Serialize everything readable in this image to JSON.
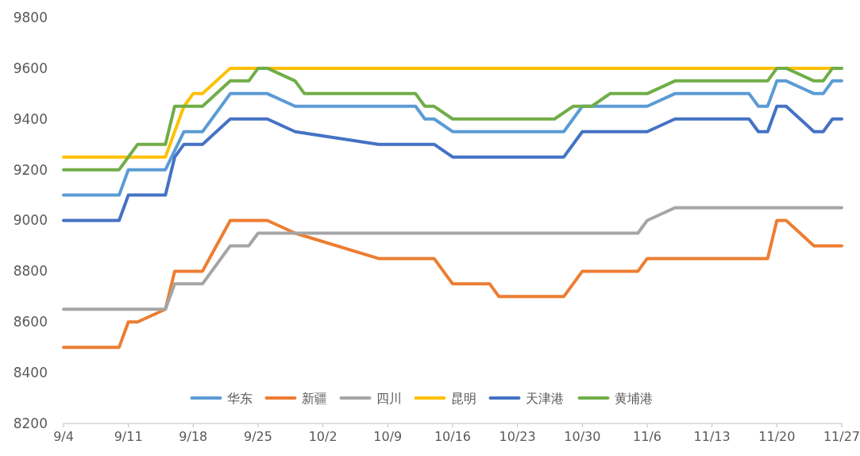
{
  "chart_data": {
    "type": "line",
    "legend": "bottom",
    "grid": false,
    "line_style": "solid",
    "marker": "none",
    "xlim": [
      "--09-04",
      "--11-27"
    ],
    "xticks": [
      {
        "value": "--09-04",
        "label": "9/4"
      },
      {
        "value": "--09-11",
        "label": "9/11"
      },
      {
        "value": "--09-18",
        "label": "9/18"
      },
      {
        "value": "--09-25",
        "label": "9/25"
      },
      {
        "value": "--10-02",
        "label": "10/2"
      },
      {
        "value": "--10-09",
        "label": "10/9"
      },
      {
        "value": "--10-16",
        "label": "10/16"
      },
      {
        "value": "--10-23",
        "label": "10/23"
      },
      {
        "value": "--10-30",
        "label": "10/30"
      },
      {
        "value": "--11-06",
        "label": "11/6"
      },
      {
        "value": "--11-13",
        "label": "11/13"
      },
      {
        "value": "--11-20",
        "label": "11/20"
      },
      {
        "value": "--11-27",
        "label": "11/27"
      }
    ],
    "ylim": [
      8200,
      9800
    ],
    "yticks": [
      8200,
      8400,
      8600,
      8800,
      9000,
      9200,
      9400,
      9600,
      9800
    ],
    "series": [
      {
        "name": "华东",
        "color": "#5b9bd5",
        "x": [
          "--09-04",
          "--09-10",
          "--09-11",
          "--09-15",
          "--09-17",
          "--09-19",
          "--09-22",
          "--09-26",
          "--09-29",
          "--10-12",
          "--10-13",
          "--10-14",
          "--10-16",
          "--10-28",
          "--10-30",
          "--11-06",
          "--11-09",
          "--11-17",
          "--11-18",
          "--11-19",
          "--11-20",
          "--11-21",
          "--11-24",
          "--11-25",
          "--11-26",
          "--11-27"
        ],
        "values": [
          9100,
          9100,
          9200,
          9200,
          9350,
          9350,
          9500,
          9500,
          9450,
          9450,
          9400,
          9400,
          9350,
          9350,
          9450,
          9450,
          9500,
          9500,
          9450,
          9450,
          9550,
          9550,
          9500,
          9500,
          9550,
          9550
        ]
      },
      {
        "name": "新疆",
        "color": "#ed7d31",
        "x": [
          "--09-04",
          "--09-10",
          "--09-11",
          "--09-12",
          "--09-15",
          "--09-16",
          "--09-19",
          "--09-22",
          "--09-26",
          "--09-29",
          "--10-08",
          "--10-14",
          "--10-16",
          "--10-20",
          "--10-21",
          "--10-28",
          "--10-30",
          "--11-05",
          "--11-06",
          "--11-19",
          "--11-20",
          "--11-21",
          "--11-24",
          "--11-27"
        ],
        "values": [
          8500,
          8500,
          8600,
          8600,
          8650,
          8800,
          8800,
          9000,
          9000,
          8950,
          8850,
          8850,
          8750,
          8750,
          8700,
          8700,
          8800,
          8800,
          8850,
          8850,
          9000,
          9000,
          8900,
          8900
        ]
      },
      {
        "name": "四川",
        "color": "#a5a5a5",
        "x": [
          "--09-04",
          "--09-15",
          "--09-16",
          "--09-19",
          "--09-22",
          "--09-24",
          "--09-25",
          "--11-05",
          "--11-06",
          "--11-09",
          "--11-27"
        ],
        "values": [
          8650,
          8650,
          8750,
          8750,
          8900,
          8900,
          8950,
          8950,
          9000,
          9050,
          9050
        ]
      },
      {
        "name": "昆明",
        "color": "#ffc000",
        "x": [
          "--09-04",
          "--09-15",
          "--09-17",
          "--09-18",
          "--09-19",
          "--09-22",
          "--11-27"
        ],
        "values": [
          9250,
          9250,
          9450,
          9500,
          9500,
          9600,
          9600
        ]
      },
      {
        "name": "天津港",
        "color": "#4472c4",
        "x": [
          "--09-04",
          "--09-10",
          "--09-11",
          "--09-15",
          "--09-16",
          "--09-17",
          "--09-19",
          "--09-22",
          "--09-26",
          "--09-29",
          "--10-08",
          "--10-14",
          "--10-16",
          "--10-28",
          "--10-30",
          "--11-06",
          "--11-09",
          "--11-17",
          "--11-18",
          "--11-19",
          "--11-20",
          "--11-21",
          "--11-24",
          "--11-25",
          "--11-26",
          "--11-27"
        ],
        "values": [
          9000,
          9000,
          9100,
          9100,
          9250,
          9300,
          9300,
          9400,
          9400,
          9350,
          9300,
          9300,
          9250,
          9250,
          9350,
          9350,
          9400,
          9400,
          9350,
          9350,
          9450,
          9450,
          9350,
          9350,
          9400,
          9400
        ]
      },
      {
        "name": "黄埔港",
        "color": "#70ad47",
        "x": [
          "--09-04",
          "--09-10",
          "--09-12",
          "--09-15",
          "--09-16",
          "--09-19",
          "--09-22",
          "--09-24",
          "--09-25",
          "--09-26",
          "--09-29",
          "--09-30",
          "--10-12",
          "--10-13",
          "--10-14",
          "--10-16",
          "--10-27",
          "--10-29",
          "--10-31",
          "--11-02",
          "--11-06",
          "--11-09",
          "--11-19",
          "--11-20",
          "--11-21",
          "--11-24",
          "--11-25",
          "--11-26",
          "--11-27"
        ],
        "values": [
          9200,
          9200,
          9300,
          9300,
          9450,
          9450,
          9550,
          9550,
          9600,
          9600,
          9550,
          9500,
          9500,
          9450,
          9450,
          9400,
          9400,
          9450,
          9450,
          9500,
          9500,
          9550,
          9550,
          9600,
          9600,
          9550,
          9550,
          9600,
          9600
        ]
      }
    ]
  }
}
